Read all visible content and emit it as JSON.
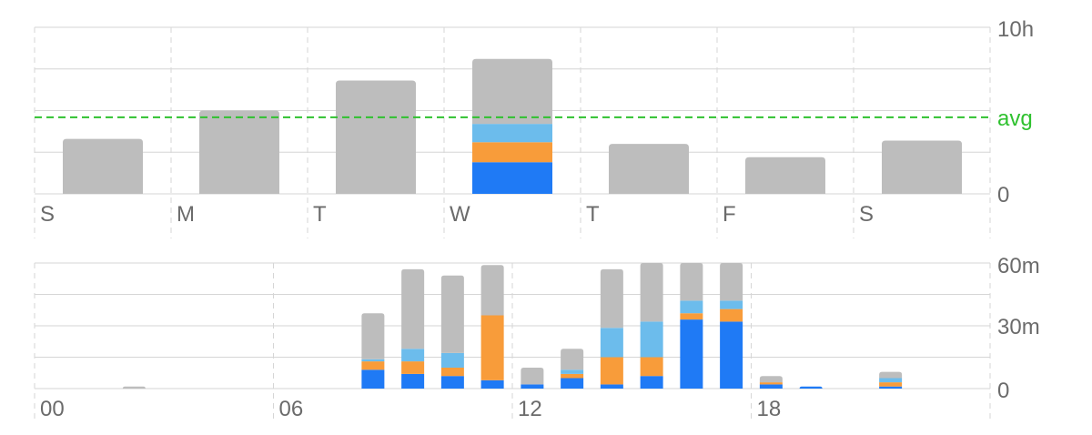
{
  "colors": {
    "other": "#bdbdbd",
    "blue": "#1f7af5",
    "orange": "#f89c3a",
    "light_blue": "#6cbcec",
    "avg": "#2fc12f",
    "grid": "#d6d6d6",
    "text": "#6b6b6b"
  },
  "chart_data": [
    {
      "type": "bar",
      "stacked": true,
      "categories": [
        "S",
        "M",
        "T",
        "W",
        "T",
        "F",
        "S"
      ],
      "y_ticks": [
        "10h",
        "0"
      ],
      "ylim": [
        0,
        10
      ],
      "avg_label": "avg",
      "avg_value": 4.6,
      "series": [
        {
          "color": "blue",
          "values": [
            0,
            0,
            0,
            1.9,
            0,
            0,
            0
          ]
        },
        {
          "color": "orange",
          "values": [
            0,
            0,
            0,
            1.2,
            0,
            0,
            0
          ]
        },
        {
          "color": "light_blue",
          "values": [
            0,
            0,
            0,
            1.1,
            0,
            0,
            0
          ]
        },
        {
          "color": "other",
          "values": [
            3.3,
            5.0,
            6.8,
            3.9,
            3.0,
            2.2,
            3.2
          ]
        }
      ]
    },
    {
      "type": "bar",
      "stacked": true,
      "x_tick_labels": [
        "00",
        "06",
        "12",
        "18"
      ],
      "y_ticks": [
        "60m",
        "30m",
        "0"
      ],
      "ylim": [
        0,
        60
      ],
      "hours": [
        0,
        1,
        2,
        3,
        4,
        5,
        6,
        7,
        8,
        9,
        10,
        11,
        12,
        13,
        14,
        15,
        16,
        17,
        18,
        19,
        20,
        21,
        22,
        23
      ],
      "series": [
        {
          "color": "blue",
          "values": [
            0,
            0,
            0,
            0,
            0,
            0,
            0,
            0,
            9,
            7,
            6,
            4,
            2,
            5,
            2,
            6,
            33,
            32,
            2,
            1,
            0,
            1,
            0,
            0
          ]
        },
        {
          "color": "orange",
          "values": [
            0,
            0,
            0,
            0,
            0,
            0,
            0,
            0,
            4,
            6,
            4,
            31,
            0,
            2,
            13,
            9,
            3,
            6,
            1,
            0,
            0,
            2,
            0,
            0
          ]
        },
        {
          "color": "light_blue",
          "values": [
            0,
            0,
            0,
            0,
            0,
            0,
            0,
            0,
            1,
            6,
            7,
            0,
            0,
            2,
            14,
            17,
            6,
            4,
            0,
            0,
            0,
            2,
            0,
            0
          ]
        },
        {
          "color": "other",
          "values": [
            0,
            0,
            1,
            0,
            0,
            0,
            0,
            0,
            22,
            38,
            37,
            24,
            8,
            10,
            28,
            28,
            18,
            18,
            3,
            0,
            0,
            3,
            0,
            0
          ]
        }
      ]
    }
  ]
}
